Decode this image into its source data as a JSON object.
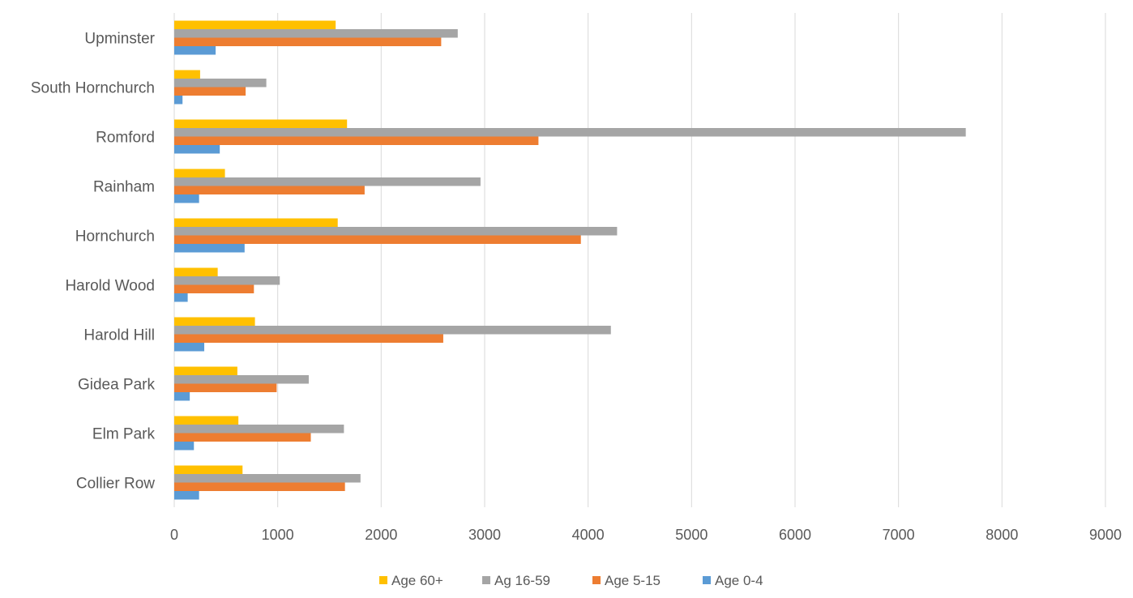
{
  "chart_data": {
    "type": "bar",
    "orientation": "horizontal",
    "categories": [
      "Collier Row",
      "Elm Park",
      "Gidea Park",
      "Harold Hill",
      "Harold Wood",
      "Hornchurch",
      "Rainham",
      "Romford",
      "South Hornchurch",
      "Upminster"
    ],
    "series": [
      {
        "name": "Age 0-4",
        "color": "#5B9BD5",
        "values": [
          240,
          190,
          150,
          290,
          130,
          680,
          240,
          440,
          80,
          400
        ]
      },
      {
        "name": "Age 5-15",
        "color": "#ED7D31",
        "values": [
          1650,
          1320,
          990,
          2600,
          770,
          3930,
          1840,
          3520,
          690,
          2580
        ]
      },
      {
        "name": "Ag 16-59",
        "color": "#A5A5A5",
        "values": [
          1800,
          1640,
          1300,
          4220,
          1020,
          4280,
          2960,
          7650,
          890,
          2740
        ]
      },
      {
        "name": "Age 60+",
        "color": "#FFC000",
        "values": [
          660,
          620,
          610,
          780,
          420,
          1580,
          490,
          1670,
          250,
          1560
        ]
      }
    ],
    "legend_order": [
      "Age 60+",
      "Ag 16-59",
      "Age 5-15",
      "Age 0-4"
    ],
    "xlim": [
      0,
      9000
    ],
    "x_ticks": [
      "0",
      "1000",
      "2000",
      "3000",
      "4000",
      "5000",
      "6000",
      "7000",
      "8000",
      "9000"
    ],
    "title": "",
    "xlabel": "",
    "ylabel": "",
    "grid": "vertical",
    "legend_position": "bottom"
  }
}
